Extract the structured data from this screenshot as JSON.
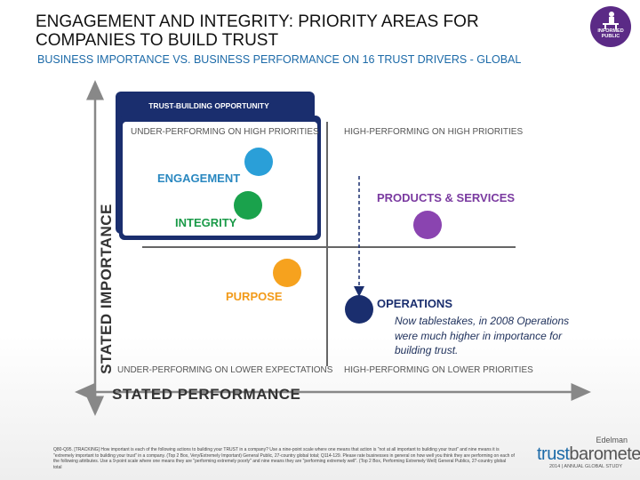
{
  "header": {
    "title": "ENGAGEMENT AND INTEGRITY: PRIORITY AREAS FOR COMPANIES TO BUILD TRUST",
    "subtitle": "BUSINESS IMPORTANCE VS. BUSINESS PERFORMANCE ON 16 TRUST DRIVERS - GLOBAL",
    "badge_text": "INFORMED PUBLIC",
    "badge_icon": "person-at-desk-icon"
  },
  "chart_data": {
    "type": "scatter",
    "xlabel": "STATED PERFORMANCE",
    "ylabel": "STATED IMPORTANCE",
    "quadrants": {
      "top_left": "UNDER-PERFORMING ON HIGH PRIORITIES",
      "top_right": "HIGH-PERFORMING ON HIGH PRIORITIES",
      "bottom_left": "UNDER-PERFORMING ON LOWER EXPECTATIONS",
      "bottom_right": "HIGH-PERFORMING ON LOWER PRIORITIES"
    },
    "highlight_box": "TRUST-BUILDING OPPORTUNITY",
    "points": [
      {
        "name": "ENGAGEMENT",
        "color": "#2a9fd8"
      },
      {
        "name": "INTEGRITY",
        "color": "#1aa24c"
      },
      {
        "name": "PRODUCTS & SERVICES",
        "color": "#8a44b0"
      },
      {
        "name": "PURPOSE",
        "color": "#f6a21e"
      },
      {
        "name": "OPERATIONS",
        "color": "#1a2e6e"
      }
    ],
    "annotation": "Now tablestakes, in 2008 Operations were much higher in importance for building trust."
  },
  "footnote": "Q80-Q95. [TRACKING] How important is each of the following actions to building your TRUST in a company? Use a nine-point scale where one means that action is \"not at all important to building your trust\" and nine means it is \"extremely important to building your trust\" in a company. (Top 2 Box, Very/Extremely Important) General Public, 27-country global total; Q114-129. Please rate businesses in general on how well you think they are performing on each of the following attributes. Use a 9-point scale where one means they are \"performing extremely poorly\" and nine means they are \"performing extremely well\". (Top 2 Box, Performing Extremely Well) General Publics, 27-country global total",
  "brand": {
    "company": "Edelman",
    "product_a": "trust",
    "product_b": "barometer",
    "tagline": "2014 | ANNUAL GLOBAL STUDY"
  }
}
